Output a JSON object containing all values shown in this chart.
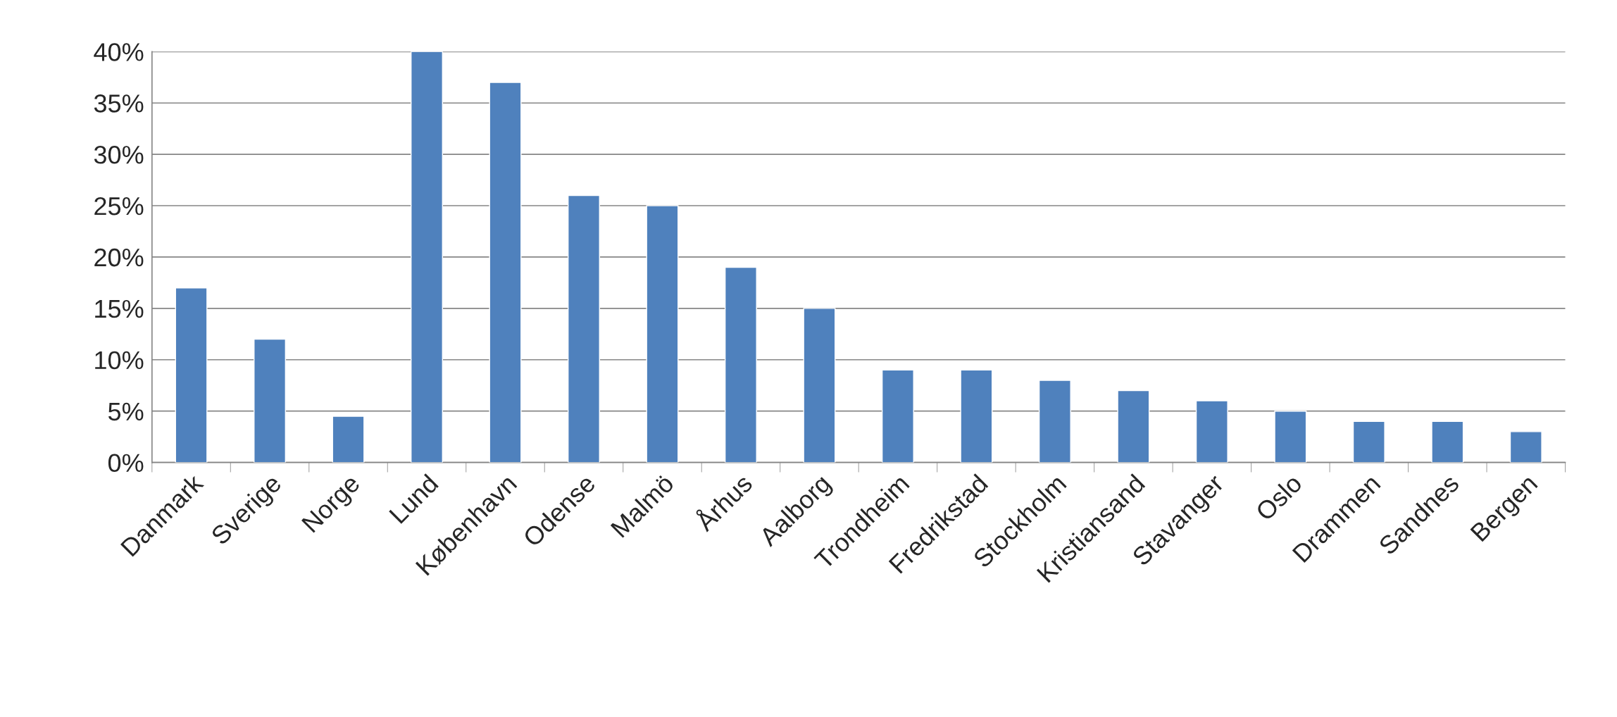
{
  "chart_data": {
    "type": "bar",
    "categories": [
      "Danmark",
      "Sverige",
      "Norge",
      "Lund",
      "København",
      "Odense",
      "Malmö",
      "Århus",
      "Aalborg",
      "Trondheim",
      "Fredrikstad",
      "Stockholm",
      "Kristiansand",
      "Stavanger",
      "Oslo",
      "Drammen",
      "Sandnes",
      "Bergen"
    ],
    "values": [
      17,
      12,
      4.5,
      40,
      37,
      26,
      25,
      19,
      15,
      9,
      9,
      8,
      7,
      6,
      5,
      4,
      4,
      3
    ],
    "color": "#4f81bd",
    "ylim": [
      0,
      40
    ],
    "yticks": [
      {
        "value": 0,
        "label": "0%"
      },
      {
        "value": 5,
        "label": "5%"
      },
      {
        "value": 10,
        "label": "10%"
      },
      {
        "value": 15,
        "label": "15%"
      },
      {
        "value": 20,
        "label": "20%"
      },
      {
        "value": 25,
        "label": "25%"
      },
      {
        "value": 30,
        "label": "30%"
      },
      {
        "value": 35,
        "label": "35%"
      },
      {
        "value": 40,
        "label": "40%"
      }
    ],
    "grid": "y",
    "legend": false
  }
}
